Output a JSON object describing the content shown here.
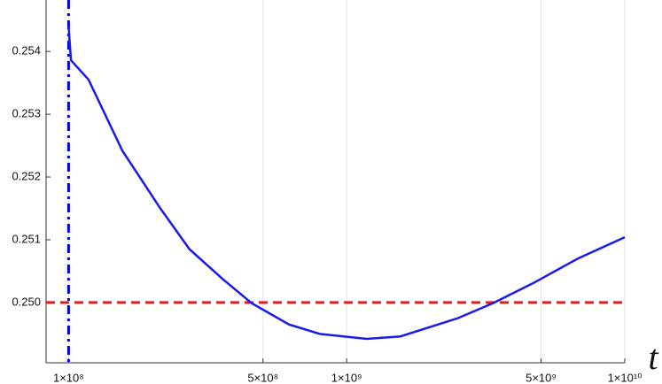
{
  "chart_data": {
    "type": "line",
    "x_label": "t",
    "log_x": true,
    "grid": "x",
    "xlim": [
      83000000,
      10000000000
    ],
    "ylim": [
      0.24904,
      0.25482
    ],
    "xticks": [
      {
        "value": 100000000,
        "label": "1×10⁸"
      },
      {
        "value": 500000000,
        "label": "5×10⁸"
      },
      {
        "value": 1000000000,
        "label": "1×10⁹"
      },
      {
        "value": 5000000000,
        "label": "5×10⁹"
      },
      {
        "value": 10000000000,
        "label": "1×10¹⁰"
      }
    ],
    "yticks": [
      {
        "value": 0.25,
        "label": "0.250"
      },
      0.251,
      0.252,
      0.253,
      0.254
    ],
    "vline": {
      "value": 100000000,
      "color": "#0000e0"
    },
    "hline": {
      "value": 0.25,
      "color": "#e02020"
    },
    "series": [
      {
        "color": "#1a1aee",
        "x": [
          100000000,
          102000000,
          118000000,
          156000000,
          213000000,
          272000000,
          357000000,
          455000000,
          620000000,
          800000000,
          1180000000,
          1560000000,
          2510000000,
          3360000000,
          4690000000,
          6780000000,
          10000000000
        ],
        "values": [
          0.2544,
          0.25386,
          0.25355,
          0.25242,
          0.25151,
          0.25085,
          0.25038,
          0.24999,
          0.24965,
          0.2495,
          0.24942,
          0.24946,
          0.24975,
          0.24999,
          0.25031,
          0.2507,
          0.25104
        ]
      }
    ]
  }
}
